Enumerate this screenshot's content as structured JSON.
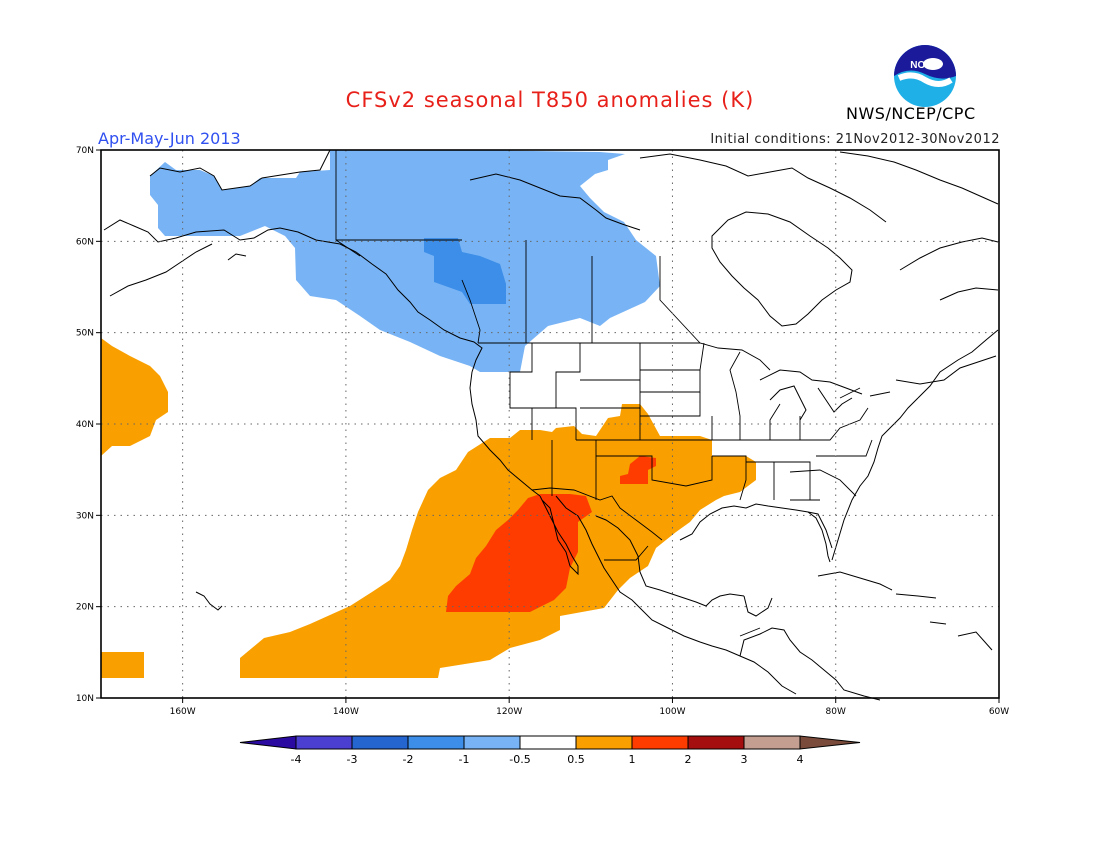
{
  "title": "CFSv2 seasonal T850 anomalies (K)",
  "season": "Apr-May-Jun 2013",
  "initial_conditions": "Initial conditions: 21Nov2012-30Nov2012",
  "agency": "NWS/NCEP/CPC",
  "logo_text": "NOAA",
  "colors": {
    "title": "#e8201a",
    "season": "#3050f0",
    "neg4": "#2a0aa0",
    "neg3": "#4a3fd0",
    "neg2": "#2565d0",
    "neg1": "#3d8ee8",
    "neg05": "#78b4f5",
    "neutral": "#ffffff",
    "pos05": "#f9a000",
    "pos1": "#ff3c00",
    "pos2": "#a50e0e",
    "pos3": "#c49e90",
    "pos4": "#7a4a3a"
  },
  "map": {
    "lon_range": [
      -170,
      -60
    ],
    "lat_range": [
      10,
      70
    ],
    "lat_ticks": [
      "70N",
      "60N",
      "50N",
      "40N",
      "30N",
      "20N",
      "10N"
    ],
    "lon_ticks": [
      "160W",
      "140W",
      "120W",
      "100W",
      "80W",
      "60W"
    ],
    "grid": "dotted"
  },
  "colorbar": {
    "labels": [
      "-4",
      "-3",
      "-2",
      "-1",
      "-0.5",
      "0.5",
      "1",
      "2",
      "3",
      "4"
    ]
  },
  "anomaly_regions": [
    {
      "category": "neg05",
      "label": "Alaska / W Canada cool anomaly"
    },
    {
      "category": "neg1",
      "label": "N British Columbia / Yukon cool core"
    },
    {
      "category": "pos05",
      "label": "NE Pacific warm anomaly"
    },
    {
      "category": "pos05",
      "label": "SW US / Mexico / E Pacific warm anomaly"
    },
    {
      "category": "pos1",
      "label": "Baja California / E Pacific warm core"
    },
    {
      "category": "pos1",
      "label": "Texas panhandle warm core"
    }
  ]
}
